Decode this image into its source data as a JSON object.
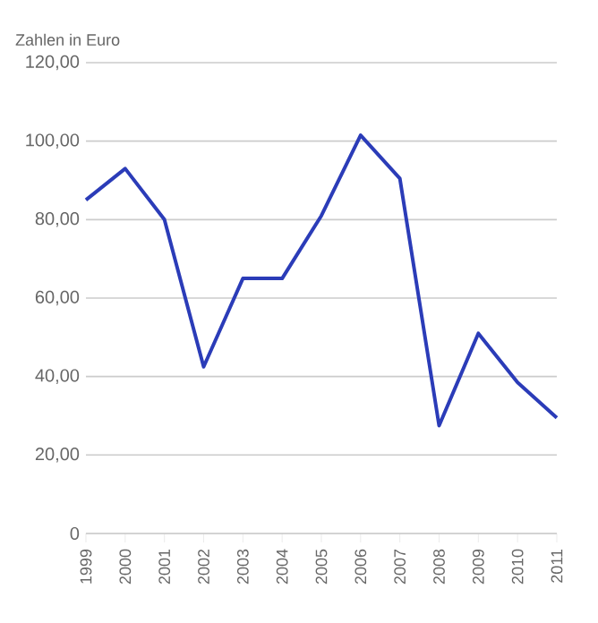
{
  "chart_data": {
    "type": "line",
    "ylabel": "Zahlen in Euro",
    "categories": [
      "1999",
      "2000",
      "2001",
      "2002",
      "2003",
      "2004",
      "2005",
      "2006",
      "2007",
      "2008",
      "2009",
      "2010",
      "2011"
    ],
    "values": [
      85,
      93,
      80,
      42.5,
      65,
      65,
      81,
      101.5,
      90.5,
      27.5,
      51,
      38.5,
      29.5
    ],
    "color": "#2b3cb8",
    "ylim": [
      0,
      120
    ],
    "yticks": [
      0,
      {
        "value": 20,
        "label": "20,00"
      },
      {
        "value": 40,
        "label": "40,00"
      },
      {
        "value": 60,
        "label": "60,00"
      },
      {
        "value": 80,
        "label": "80,00"
      },
      {
        "value": 100,
        "label": "100,00"
      },
      {
        "value": 120,
        "label": "120,00"
      }
    ],
    "grid": "y",
    "marker": "none",
    "line_style": "solid"
  }
}
